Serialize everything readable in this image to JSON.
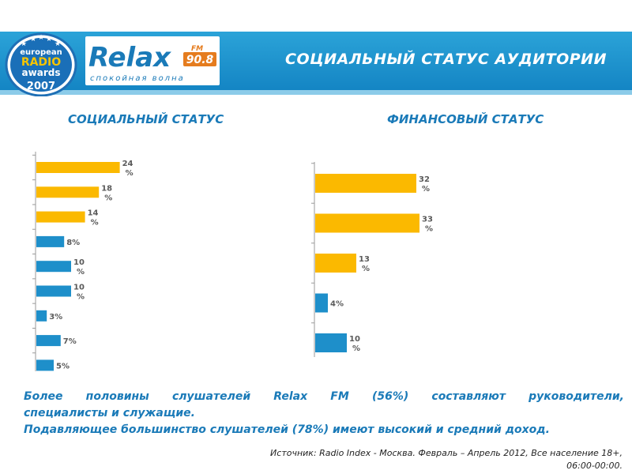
{
  "header": {
    "title": "СОЦИАЛЬНЫЙ СТАТУС АУДИТОРИИ",
    "badge": {
      "line1": "european",
      "line2": "RADIO",
      "line3": "awards",
      "year": "2007"
    },
    "logo": {
      "word": "Relax",
      "fm": "FM",
      "freq": "90.8",
      "tagline": "спокойная волна"
    }
  },
  "colors": {
    "brand_blue": "#1a7ab8",
    "header_blue": "#1e95cf",
    "orange_bar": "#fbb900",
    "blue_bar": "#1e8fca"
  },
  "chart_data": [
    {
      "type": "bar",
      "orientation": "horizontal",
      "title": "СОЦИАЛЬНЫЙ СТАТУС",
      "values": [
        24,
        18,
        14,
        8,
        10,
        10,
        3,
        7,
        5
      ],
      "labels": [
        "24 %",
        "18 %",
        "14 %",
        "8%",
        "10 %",
        "10 %",
        "3%",
        "7%",
        "5%"
      ],
      "bar_colors": [
        "orange",
        "orange",
        "orange",
        "blue",
        "blue",
        "blue",
        "blue",
        "blue",
        "blue"
      ],
      "xlim": [
        0,
        30
      ]
    },
    {
      "type": "bar",
      "orientation": "horizontal",
      "title": "ФИНАНСОВЫЙ СТАТУС",
      "values": [
        32,
        33,
        13,
        4,
        10
      ],
      "labels": [
        "32 %",
        "33 %",
        "13 %",
        "4%",
        "10 %"
      ],
      "bar_colors": [
        "orange",
        "orange",
        "orange",
        "blue",
        "blue"
      ],
      "xlim": [
        0,
        40
      ]
    }
  ],
  "summary": {
    "line1": "Более половины слушателей Relax FM (56%) составляют руководители,",
    "line2": "специалисты и служащие.",
    "line3": "Подавляющее большинство слушателей (78%) имеют высокий и средний доход."
  },
  "source": {
    "line1": "Источник: Radio Index - Москва. Февраль – Апрель 2012, Все население 18+,",
    "line2": "06:00-00:00."
  }
}
